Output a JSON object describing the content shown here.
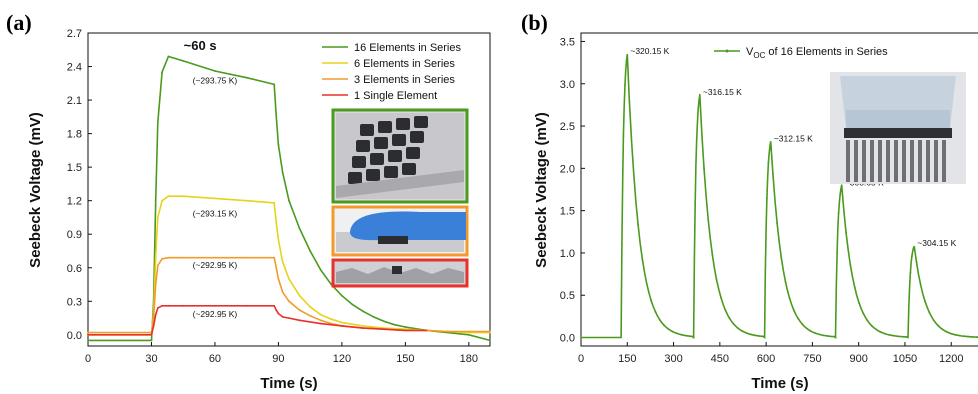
{
  "chart_data": [
    {
      "panel_label": "(a)",
      "type": "line",
      "xlabel": "Time (s)",
      "ylabel": "Seebeck Voltage (mV)",
      "xlim": [
        0,
        190
      ],
      "ylim": [
        -0.1,
        2.7
      ],
      "xticks": [
        "0",
        "30",
        "60",
        "90",
        "120",
        "150",
        "180"
      ],
      "yticks": [
        "0.0",
        "0.3",
        "0.6",
        "0.9",
        "1.2",
        "1.5",
        "1.8",
        "2.1",
        "2.4",
        "2.7"
      ],
      "legend_position": "top-right",
      "series": [
        {
          "name": "16 Elements in Series",
          "color": "#4a9a1e",
          "x": [
            0,
            30,
            31,
            32,
            33,
            35,
            38,
            45,
            60,
            75,
            88,
            89,
            90,
            92,
            95,
            100,
            105,
            110,
            115,
            120,
            125,
            130,
            135,
            140,
            145,
            150,
            160,
            170,
            180,
            190
          ],
          "y": [
            -0.05,
            -0.05,
            0.3,
            1.2,
            1.9,
            2.35,
            2.49,
            2.45,
            2.36,
            2.3,
            2.24,
            1.95,
            1.7,
            1.45,
            1.2,
            0.95,
            0.75,
            0.58,
            0.45,
            0.35,
            0.27,
            0.21,
            0.16,
            0.12,
            0.09,
            0.07,
            0.04,
            0.02,
            0.0,
            -0.05
          ]
        },
        {
          "name": "6 Elements in Series",
          "color": "#e7d21c",
          "x": [
            0,
            30,
            31,
            32,
            33,
            35,
            38,
            45,
            60,
            75,
            88,
            89,
            90,
            92,
            95,
            100,
            105,
            110,
            115,
            120,
            130,
            140,
            150,
            160,
            170,
            180,
            190
          ],
          "y": [
            0.0,
            0.0,
            0.2,
            0.7,
            1.05,
            1.2,
            1.24,
            1.24,
            1.22,
            1.2,
            1.18,
            1.0,
            0.85,
            0.65,
            0.5,
            0.35,
            0.25,
            0.18,
            0.14,
            0.11,
            0.08,
            0.06,
            0.05,
            0.04,
            0.03,
            0.02,
            0.02
          ]
        },
        {
          "name": "3 Elements in Series",
          "color": "#f39a2a",
          "x": [
            0,
            30,
            31,
            32,
            33,
            35,
            38,
            45,
            60,
            75,
            88,
            89,
            90,
            92,
            95,
            100,
            105,
            110,
            115,
            120,
            130,
            140,
            150,
            160,
            170,
            180,
            190
          ],
          "y": [
            0.02,
            0.02,
            0.15,
            0.45,
            0.62,
            0.68,
            0.69,
            0.69,
            0.69,
            0.69,
            0.69,
            0.6,
            0.5,
            0.38,
            0.3,
            0.22,
            0.17,
            0.13,
            0.1,
            0.08,
            0.06,
            0.05,
            0.04,
            0.04,
            0.03,
            0.03,
            0.03
          ]
        },
        {
          "name": "1 Single Element",
          "color": "#e8312a",
          "x": [
            0,
            30,
            31,
            32,
            33,
            35,
            38,
            45,
            60,
            75,
            88,
            89,
            90,
            92,
            95,
            100,
            110,
            120,
            130,
            140,
            150,
            160
          ],
          "y": [
            0.0,
            0.0,
            0.08,
            0.18,
            0.24,
            0.26,
            0.26,
            0.26,
            0.26,
            0.26,
            0.26,
            0.22,
            0.19,
            0.16,
            0.15,
            0.13,
            0.1,
            0.08,
            0.06,
            0.05,
            0.04,
            0.04
          ]
        }
      ],
      "annotations": [
        {
          "text": "~60 s",
          "x": 53,
          "y": 2.55,
          "bold": true
        },
        {
          "text": "(~293.75 K)",
          "x": 60,
          "y": 2.25
        },
        {
          "text": "(~293.15 K)",
          "x": 60,
          "y": 1.06
        },
        {
          "text": "(~292.95 K)",
          "x": 60,
          "y": 0.6
        },
        {
          "text": "(~292.95 K)",
          "x": 60,
          "y": 0.16
        }
      ]
    },
    {
      "panel_label": "(b)",
      "type": "line",
      "xlabel": "Time (s)",
      "ylabel": "Seebeck Voltage (mV)",
      "xlim": [
        0,
        1290
      ],
      "ylim": [
        -0.1,
        3.6
      ],
      "xticks": [
        "0",
        "150",
        "300",
        "450",
        "600",
        "750",
        "900",
        "1050",
        "1200"
      ],
      "yticks": [
        "0.0",
        "0.5",
        "1.0",
        "1.5",
        "2.0",
        "2.5",
        "3.0",
        "3.5"
      ],
      "legend_position": "top-right",
      "series": [
        {
          "name_main": "V",
          "name_sub": "OC",
          "name_rest": " of 16 Elements in Series",
          "color": "#4a9a1e",
          "peaks": [
            {
              "start": 130,
              "peak_t": 150,
              "peak_v": 3.35,
              "end": 360
            },
            {
              "start": 365,
              "peak_t": 385,
              "peak_v": 2.87,
              "end": 590
            },
            {
              "start": 595,
              "peak_t": 615,
              "peak_v": 2.32,
              "end": 820
            },
            {
              "start": 825,
              "peak_t": 845,
              "peak_v": 1.8,
              "end": 1055
            },
            {
              "start": 1060,
              "peak_t": 1080,
              "peak_v": 1.08,
              "end": 1290
            }
          ]
        }
      ],
      "annotations": [
        {
          "text": "~320.15 K",
          "x": 160,
          "y": 3.35
        },
        {
          "text": "~316.15 K",
          "x": 395,
          "y": 2.87
        },
        {
          "text": "~312.15 K",
          "x": 625,
          "y": 2.32
        },
        {
          "text": "~308.65 K",
          "x": 855,
          "y": 1.8
        },
        {
          "text": "~304.15 K",
          "x": 1090,
          "y": 1.08
        }
      ]
    }
  ],
  "colors": {
    "frame_green": "#4a9a1e",
    "frame_orange": "#f39a2a",
    "frame_red": "#e8312a"
  }
}
